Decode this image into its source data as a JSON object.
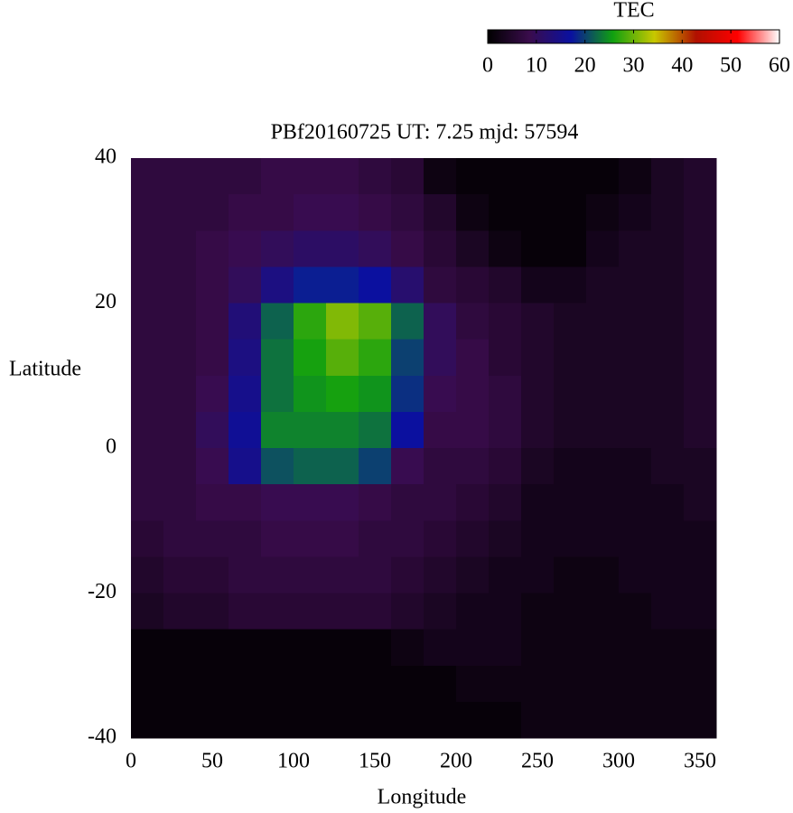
{
  "chart_data": {
    "type": "heatmap",
    "title": "PBf20160725  UT: 7.25  mjd: 57594",
    "xlabel": "Longitude",
    "ylabel": "Latitude",
    "colorbar_label": "TEC",
    "x": [
      10,
      30,
      50,
      70,
      90,
      110,
      130,
      150,
      170,
      190,
      210,
      230,
      250,
      270,
      290,
      310,
      330,
      350
    ],
    "y": [
      37.5,
      32.5,
      27.5,
      22.5,
      17.5,
      12.5,
      7.5,
      2.5,
      -2.5,
      -7.5,
      -12.5,
      -17.5,
      -22.5,
      -27.5,
      -32.5,
      -37.5
    ],
    "z": [
      [
        7,
        7,
        7,
        7,
        8,
        8,
        8,
        7,
        6,
        2,
        1,
        1,
        1,
        1,
        1,
        2,
        4,
        5
      ],
      [
        7,
        7,
        7,
        8,
        8,
        9,
        9,
        8,
        7,
        5,
        2,
        1,
        1,
        1,
        2,
        3,
        4,
        5
      ],
      [
        7,
        7,
        8,
        9,
        10,
        11,
        11,
        10,
        8,
        6,
        4,
        2,
        1,
        1,
        3,
        4,
        4,
        5
      ],
      [
        7,
        7,
        8,
        10,
        14,
        18,
        18,
        17,
        12,
        7,
        6,
        5,
        3,
        3,
        4,
        4,
        4,
        5
      ],
      [
        7,
        7,
        8,
        13,
        22,
        27,
        31,
        29,
        22,
        10,
        7,
        6,
        5,
        4,
        4,
        4,
        4,
        5
      ],
      [
        7,
        7,
        8,
        14,
        23,
        26,
        29,
        27,
        20,
        10,
        8,
        6,
        5,
        4,
        4,
        4,
        4,
        5
      ],
      [
        7,
        7,
        9,
        15,
        23,
        25,
        26,
        25,
        19,
        9,
        8,
        7,
        5,
        4,
        4,
        4,
        4,
        5
      ],
      [
        7,
        7,
        10,
        16,
        24,
        24,
        24,
        23,
        17,
        8,
        8,
        7,
        5,
        4,
        4,
        4,
        4,
        5
      ],
      [
        7,
        7,
        9,
        15,
        21,
        22,
        22,
        20,
        9,
        7,
        7,
        6,
        4,
        3,
        3,
        3,
        4,
        4
      ],
      [
        7,
        7,
        8,
        8,
        9,
        9,
        9,
        8,
        7,
        7,
        6,
        5,
        3,
        3,
        3,
        3,
        3,
        4
      ],
      [
        6,
        7,
        7,
        7,
        8,
        8,
        8,
        7,
        7,
        6,
        5,
        4,
        3,
        3,
        3,
        3,
        3,
        3
      ],
      [
        5,
        6,
        6,
        7,
        7,
        7,
        7,
        7,
        6,
        5,
        4,
        3,
        3,
        2,
        2,
        3,
        3,
        3
      ],
      [
        4,
        5,
        5,
        6,
        6,
        6,
        6,
        6,
        5,
        4,
        3,
        3,
        2,
        2,
        2,
        2,
        3,
        3
      ],
      [
        1,
        1,
        1,
        1,
        1,
        1,
        1,
        1,
        2,
        3,
        3,
        3,
        2,
        2,
        2,
        2,
        2,
        2
      ],
      [
        1,
        1,
        1,
        1,
        1,
        1,
        1,
        1,
        1,
        1,
        2,
        2,
        2,
        2,
        2,
        2,
        2,
        2
      ],
      [
        1,
        1,
        1,
        1,
        1,
        1,
        1,
        1,
        1,
        1,
        1,
        1,
        2,
        2,
        2,
        2,
        2,
        2
      ]
    ],
    "xlim": [
      0,
      360
    ],
    "ylim": [
      -40,
      40
    ],
    "xticks": [
      0,
      50,
      100,
      150,
      200,
      250,
      300,
      350
    ],
    "yticks": [
      -40,
      -20,
      0,
      20,
      40
    ],
    "zlim": [
      0,
      60
    ],
    "zticks": [
      0,
      10,
      20,
      30,
      40,
      50,
      60
    ],
    "colors": [
      "#000000",
      "#3a0c4c",
      "#0a10a0",
      "#10a010",
      "#c8c800",
      "#b01000",
      "#ff0000",
      "#ffffff"
    ]
  }
}
